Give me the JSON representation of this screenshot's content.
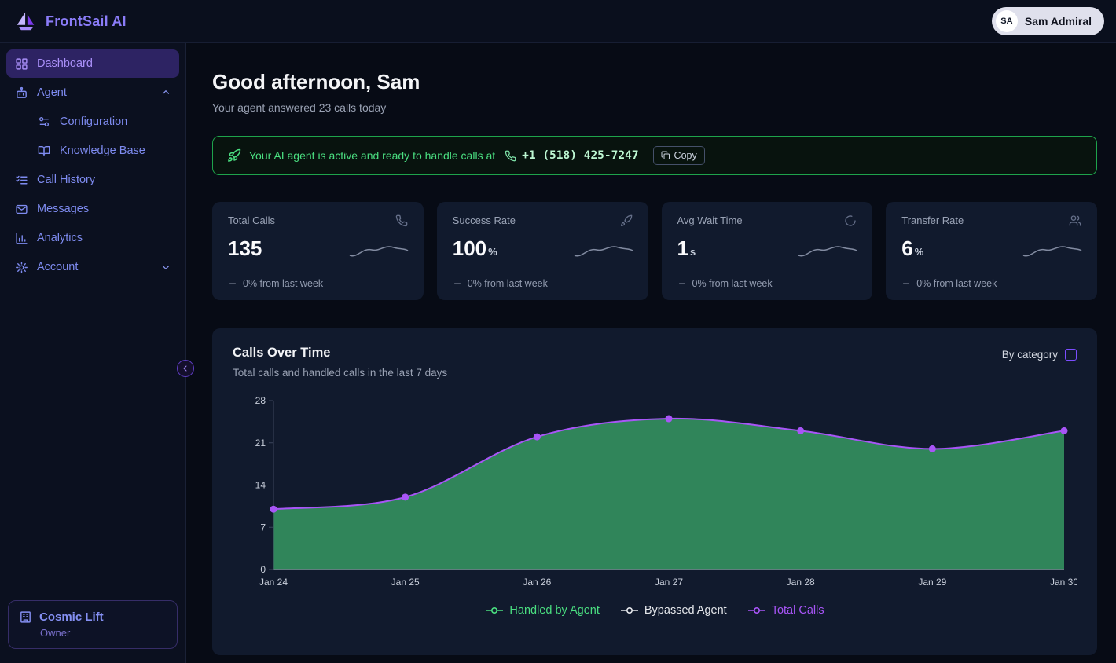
{
  "topbar": {
    "brand": "FrontSail AI",
    "user": {
      "initials": "SA",
      "name": "Sam Admiral"
    }
  },
  "sidebar": {
    "items": [
      {
        "label": "Dashboard",
        "icon": "grid-icon",
        "active": true
      },
      {
        "label": "Agent",
        "icon": "bot-icon",
        "expanded": true
      },
      {
        "label": "Configuration",
        "icon": "sliders-icon"
      },
      {
        "label": "Knowledge Base",
        "icon": "book-icon"
      },
      {
        "label": "Call History",
        "icon": "list-checks-icon"
      },
      {
        "label": "Messages",
        "icon": "mail-icon"
      },
      {
        "label": "Analytics",
        "icon": "bar-chart-icon"
      },
      {
        "label": "Account",
        "icon": "gear-icon",
        "collapsed": true
      }
    ],
    "org": {
      "name": "Cosmic Lift",
      "role": "Owner",
      "icon": "building-icon"
    }
  },
  "main": {
    "greeting": "Good afternoon, Sam",
    "subtitle": "Your agent answered 23 calls today",
    "banner": {
      "message": "Your AI agent is active and ready to handle calls at",
      "phone": "+1 (518) 425-7247",
      "copy_label": "Copy",
      "accent_color": "#4ade80"
    },
    "stats": [
      {
        "label": "Total Calls",
        "value": "135",
        "unit": "",
        "icon": "phone-icon",
        "delta": "0% from last week"
      },
      {
        "label": "Success Rate",
        "value": "100",
        "unit": "%",
        "icon": "rocket-icon",
        "delta": "0% from last week"
      },
      {
        "label": "Avg Wait Time",
        "value": "1",
        "unit": "s",
        "icon": "loader-icon",
        "delta": "0% from last week"
      },
      {
        "label": "Transfer Rate",
        "value": "6",
        "unit": "%",
        "icon": "users-icon",
        "delta": "0% from last week"
      }
    ],
    "chart": {
      "title": "Calls Over Time",
      "subtitle": "Total calls and handled calls in the last 7 days",
      "by_category_label": "By category",
      "legend": [
        {
          "label": "Handled by Agent",
          "color": "#4ade80"
        },
        {
          "label": "Bypassed Agent",
          "color": "#e5e7eb"
        },
        {
          "label": "Total Calls",
          "color": "#a855f7"
        }
      ]
    }
  },
  "chart_data": {
    "type": "area",
    "title": "Calls Over Time",
    "x": [
      "Jan 24",
      "Jan 25",
      "Jan 26",
      "Jan 27",
      "Jan 28",
      "Jan 29",
      "Jan 30"
    ],
    "series": [
      {
        "name": "Handled by Agent",
        "values": [
          10,
          12,
          22,
          25,
          23,
          20,
          23
        ],
        "color": "#4ade80",
        "fill": true
      },
      {
        "name": "Bypassed Agent",
        "values": [
          0,
          0,
          0,
          0,
          0,
          0,
          0
        ],
        "color": "#e5e7eb"
      },
      {
        "name": "Total Calls",
        "values": [
          10,
          12,
          22,
          25,
          23,
          20,
          23
        ],
        "color": "#a855f7",
        "dots": true
      }
    ],
    "ylim": [
      0,
      28
    ],
    "yticks": [
      0,
      7,
      14,
      21,
      28
    ],
    "xlabel": "",
    "ylabel": "",
    "legend_position": "bottom",
    "grid": false
  }
}
